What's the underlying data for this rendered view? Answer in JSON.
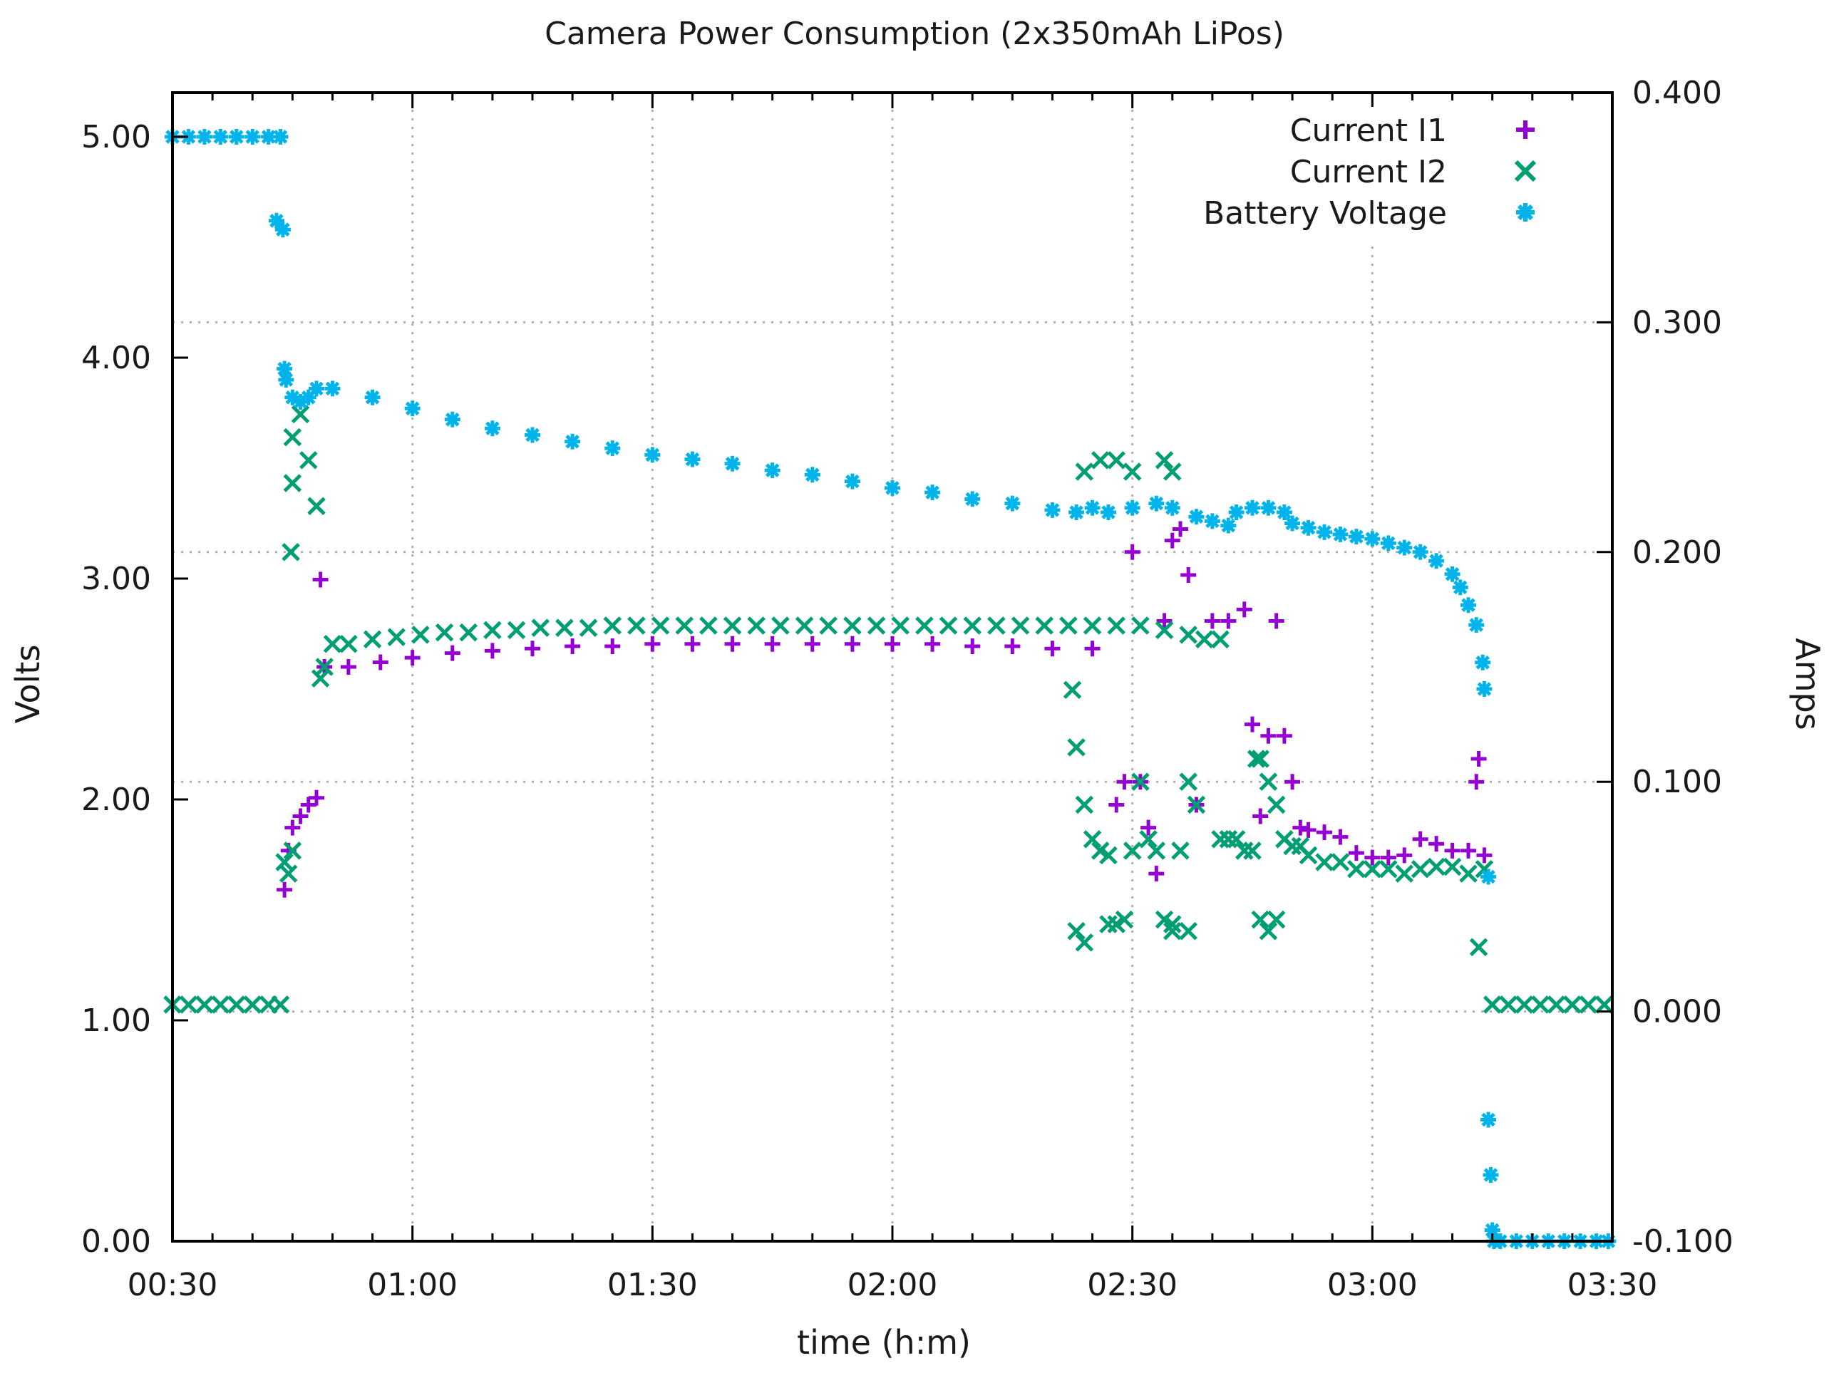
{
  "chart_data": {
    "type": "scatter",
    "title": "Camera Power Consumption (2x350mAh LiPos)",
    "xlabel": "time (h:m)",
    "ylabel": "Volts",
    "y2label": "Amps",
    "xlim": [
      30,
      210
    ],
    "ylim": [
      0.0,
      5.2
    ],
    "y2lim": [
      -0.1,
      0.4
    ],
    "grid": true,
    "legend_position": "top-right",
    "x_ticks": [
      {
        "value": 30,
        "label": "00:30"
      },
      {
        "value": 60,
        "label": "01:00"
      },
      {
        "value": 90,
        "label": "01:30"
      },
      {
        "value": 120,
        "label": "02:00"
      },
      {
        "value": 150,
        "label": "02:30"
      },
      {
        "value": 180,
        "label": "03:00"
      },
      {
        "value": 210,
        "label": "03:30"
      }
    ],
    "y_ticks": [
      {
        "value": 0,
        "label": "0.00"
      },
      {
        "value": 1,
        "label": "1.00"
      },
      {
        "value": 2,
        "label": "2.00"
      },
      {
        "value": 3,
        "label": "3.00"
      },
      {
        "value": 4,
        "label": "4.00"
      },
      {
        "value": 5,
        "label": "5.00"
      }
    ],
    "y2_ticks": [
      {
        "value": -0.1,
        "label": "-0.100"
      },
      {
        "value": 0.0,
        "label": "0.000"
      },
      {
        "value": 0.1,
        "label": "0.100"
      },
      {
        "value": 0.2,
        "label": "0.200"
      },
      {
        "value": 0.3,
        "label": "0.300"
      },
      {
        "value": 0.4,
        "label": "0.400"
      }
    ],
    "series": [
      {
        "name": "Current I1",
        "marker": "plus",
        "color": "#9400d3",
        "axis": "y2",
        "points": [
          [
            44,
            0.053
          ],
          [
            44.5,
            0.07
          ],
          [
            45,
            0.08
          ],
          [
            46,
            0.085
          ],
          [
            47,
            0.09
          ],
          [
            48,
            0.093
          ],
          [
            48.5,
            0.188
          ],
          [
            49,
            0.15
          ],
          [
            52,
            0.15
          ],
          [
            56,
            0.152
          ],
          [
            60,
            0.154
          ],
          [
            65,
            0.156
          ],
          [
            70,
            0.157
          ],
          [
            75,
            0.158
          ],
          [
            80,
            0.159
          ],
          [
            85,
            0.159
          ],
          [
            90,
            0.16
          ],
          [
            95,
            0.16
          ],
          [
            100,
            0.16
          ],
          [
            105,
            0.16
          ],
          [
            110,
            0.16
          ],
          [
            115,
            0.16
          ],
          [
            120,
            0.16
          ],
          [
            125,
            0.16
          ],
          [
            130,
            0.159
          ],
          [
            135,
            0.159
          ],
          [
            140,
            0.158
          ],
          [
            145,
            0.158
          ],
          [
            148,
            0.09
          ],
          [
            149,
            0.1
          ],
          [
            150,
            0.2
          ],
          [
            151,
            0.1
          ],
          [
            152,
            0.08
          ],
          [
            153,
            0.06
          ],
          [
            154,
            0.17
          ],
          [
            155,
            0.205
          ],
          [
            156,
            0.21
          ],
          [
            157,
            0.19
          ],
          [
            158,
            0.09
          ],
          [
            160,
            0.17
          ],
          [
            162,
            0.17
          ],
          [
            164,
            0.175
          ],
          [
            165,
            0.125
          ],
          [
            166,
            0.085
          ],
          [
            167,
            0.12
          ],
          [
            168,
            0.17
          ],
          [
            169,
            0.12
          ],
          [
            170,
            0.1
          ],
          [
            171,
            0.08
          ],
          [
            172,
            0.079
          ],
          [
            174,
            0.078
          ],
          [
            176,
            0.076
          ],
          [
            178,
            0.069
          ],
          [
            180,
            0.067
          ],
          [
            182,
            0.067
          ],
          [
            184,
            0.068
          ],
          [
            186,
            0.075
          ],
          [
            188,
            0.073
          ],
          [
            190,
            0.07
          ],
          [
            192,
            0.07
          ],
          [
            193,
            0.1
          ],
          [
            193.3,
            0.11
          ],
          [
            194,
            0.068
          ]
        ]
      },
      {
        "name": "Current I2",
        "marker": "cross",
        "color": "#009e73",
        "axis": "y2",
        "points": [
          [
            30,
            0.003
          ],
          [
            32,
            0.003
          ],
          [
            34,
            0.003
          ],
          [
            36,
            0.003
          ],
          [
            38,
            0.003
          ],
          [
            40,
            0.003
          ],
          [
            42,
            0.003
          ],
          [
            43.5,
            0.003
          ],
          [
            44,
            0.065
          ],
          [
            44.5,
            0.06
          ],
          [
            45,
            0.07
          ],
          [
            44.8,
            0.2
          ],
          [
            45,
            0.25
          ],
          [
            45,
            0.23
          ],
          [
            46,
            0.26
          ],
          [
            47,
            0.24
          ],
          [
            48,
            0.22
          ],
          [
            48.5,
            0.145
          ],
          [
            49,
            0.15
          ],
          [
            50,
            0.16
          ],
          [
            52,
            0.16
          ],
          [
            55,
            0.162
          ],
          [
            58,
            0.163
          ],
          [
            61,
            0.164
          ],
          [
            64,
            0.165
          ],
          [
            67,
            0.165
          ],
          [
            70,
            0.166
          ],
          [
            73,
            0.166
          ],
          [
            76,
            0.167
          ],
          [
            79,
            0.167
          ],
          [
            82,
            0.167
          ],
          [
            85,
            0.168
          ],
          [
            88,
            0.168
          ],
          [
            91,
            0.168
          ],
          [
            94,
            0.168
          ],
          [
            97,
            0.168
          ],
          [
            100,
            0.168
          ],
          [
            103,
            0.168
          ],
          [
            106,
            0.168
          ],
          [
            109,
            0.168
          ],
          [
            112,
            0.168
          ],
          [
            115,
            0.168
          ],
          [
            118,
            0.168
          ],
          [
            121,
            0.168
          ],
          [
            124,
            0.168
          ],
          [
            127,
            0.168
          ],
          [
            130,
            0.168
          ],
          [
            133,
            0.168
          ],
          [
            136,
            0.168
          ],
          [
            139,
            0.168
          ],
          [
            142,
            0.168
          ],
          [
            145,
            0.168
          ],
          [
            148,
            0.168
          ],
          [
            151,
            0.168
          ],
          [
            154,
            0.166
          ],
          [
            157,
            0.164
          ],
          [
            159,
            0.162
          ],
          [
            161,
            0.162
          ],
          [
            142.5,
            0.14
          ],
          [
            143,
            0.115
          ],
          [
            144,
            0.09
          ],
          [
            145,
            0.075
          ],
          [
            146,
            0.07
          ],
          [
            147,
            0.068
          ],
          [
            148,
            0.038
          ],
          [
            149,
            0.04
          ],
          [
            150,
            0.07
          ],
          [
            151,
            0.1
          ],
          [
            152,
            0.075
          ],
          [
            153,
            0.07
          ],
          [
            154,
            0.04
          ],
          [
            155,
            0.035
          ],
          [
            156,
            0.07
          ],
          [
            157,
            0.1
          ],
          [
            158,
            0.09
          ],
          [
            143,
            0.035
          ],
          [
            144,
            0.03
          ],
          [
            147,
            0.038
          ],
          [
            155,
            0.038
          ],
          [
            157,
            0.035
          ],
          [
            144,
            0.235
          ],
          [
            146,
            0.24
          ],
          [
            148,
            0.24
          ],
          [
            150,
            0.235
          ],
          [
            154,
            0.24
          ],
          [
            155,
            0.235
          ],
          [
            161,
            0.075
          ],
          [
            162,
            0.075
          ],
          [
            163,
            0.075
          ],
          [
            164,
            0.07
          ],
          [
            165,
            0.07
          ],
          [
            165.5,
            0.11
          ],
          [
            166,
            0.11
          ],
          [
            167,
            0.1
          ],
          [
            168,
            0.09
          ],
          [
            166,
            0.04
          ],
          [
            167,
            0.035
          ],
          [
            168,
            0.04
          ],
          [
            169,
            0.075
          ],
          [
            170,
            0.072
          ],
          [
            171,
            0.072
          ],
          [
            172,
            0.068
          ],
          [
            174,
            0.065
          ],
          [
            176,
            0.065
          ],
          [
            178,
            0.062
          ],
          [
            180,
            0.062
          ],
          [
            182,
            0.062
          ],
          [
            184,
            0.06
          ],
          [
            186,
            0.062
          ],
          [
            188,
            0.063
          ],
          [
            190,
            0.063
          ],
          [
            192,
            0.06
          ],
          [
            193.3,
            0.028
          ],
          [
            194,
            0.062
          ],
          [
            195,
            0.003
          ],
          [
            197,
            0.003
          ],
          [
            199,
            0.003
          ],
          [
            201,
            0.003
          ],
          [
            203,
            0.003
          ],
          [
            205,
            0.003
          ],
          [
            207,
            0.003
          ],
          [
            209,
            0.003
          ]
        ]
      },
      {
        "name": "Battery Voltage",
        "marker": "star",
        "color": "#00b4eb",
        "axis": "y",
        "points": [
          [
            30,
            5.0
          ],
          [
            32,
            5.0
          ],
          [
            34,
            5.0
          ],
          [
            36,
            5.0
          ],
          [
            38,
            5.0
          ],
          [
            40,
            5.0
          ],
          [
            42,
            5.0
          ],
          [
            43.5,
            5.0
          ],
          [
            43,
            4.62
          ],
          [
            43.8,
            4.58
          ],
          [
            44,
            3.95
          ],
          [
            44.2,
            3.9
          ],
          [
            45,
            3.82
          ],
          [
            46,
            3.8
          ],
          [
            47,
            3.82
          ],
          [
            48,
            3.86
          ],
          [
            50,
            3.86
          ],
          [
            55,
            3.82
          ],
          [
            60,
            3.77
          ],
          [
            65,
            3.72
          ],
          [
            70,
            3.68
          ],
          [
            75,
            3.65
          ],
          [
            80,
            3.62
          ],
          [
            85,
            3.59
          ],
          [
            90,
            3.56
          ],
          [
            95,
            3.54
          ],
          [
            100,
            3.52
          ],
          [
            105,
            3.49
          ],
          [
            110,
            3.47
          ],
          [
            115,
            3.44
          ],
          [
            120,
            3.41
          ],
          [
            125,
            3.39
          ],
          [
            130,
            3.36
          ],
          [
            135,
            3.34
          ],
          [
            140,
            3.31
          ],
          [
            143,
            3.3
          ],
          [
            145,
            3.32
          ],
          [
            147,
            3.3
          ],
          [
            150,
            3.32
          ],
          [
            153,
            3.34
          ],
          [
            155,
            3.32
          ],
          [
            158,
            3.28
          ],
          [
            160,
            3.26
          ],
          [
            162,
            3.24
          ],
          [
            163,
            3.3
          ],
          [
            165,
            3.32
          ],
          [
            167,
            3.32
          ],
          [
            169,
            3.3
          ],
          [
            170,
            3.25
          ],
          [
            172,
            3.23
          ],
          [
            174,
            3.21
          ],
          [
            176,
            3.2
          ],
          [
            178,
            3.19
          ],
          [
            180,
            3.18
          ],
          [
            182,
            3.16
          ],
          [
            184,
            3.14
          ],
          [
            186,
            3.12
          ],
          [
            188,
            3.08
          ],
          [
            190,
            3.02
          ],
          [
            191,
            2.96
          ],
          [
            192,
            2.88
          ],
          [
            193,
            2.79
          ],
          [
            193.8,
            2.62
          ],
          [
            194,
            2.5
          ],
          [
            194.5,
            1.65
          ],
          [
            194.5,
            0.55
          ],
          [
            194.8,
            0.3
          ],
          [
            195,
            0.05
          ],
          [
            195.2,
            0.0
          ],
          [
            196,
            0.0
          ],
          [
            198,
            0.0
          ],
          [
            200,
            0.0
          ],
          [
            202,
            0.0
          ],
          [
            204,
            0.0
          ],
          [
            206,
            0.0
          ],
          [
            208,
            0.0
          ],
          [
            209.5,
            0.0
          ]
        ]
      }
    ]
  }
}
